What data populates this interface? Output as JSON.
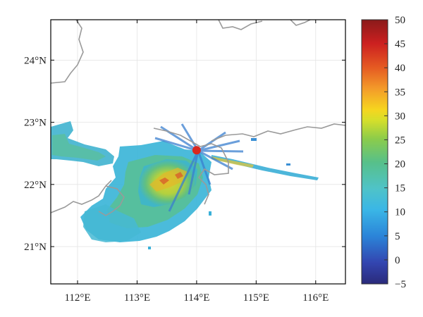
{
  "chart_data": {
    "type": "heatmap",
    "subtype": "radar-reflectivity-map",
    "x_ticks": [
      "112°E",
      "113°E",
      "114°E",
      "115°E",
      "116°E"
    ],
    "x_values": [
      112,
      113,
      114,
      115,
      116
    ],
    "xlim": [
      111.55,
      116.5
    ],
    "y_ticks": [
      "24°N",
      "23°N",
      "22°N",
      "21°N"
    ],
    "y_values": [
      24,
      23,
      22,
      21
    ],
    "ylim": [
      20.4,
      24.65
    ],
    "grid": true,
    "radar_site": {
      "lon": 114.0,
      "lat": 22.55,
      "color": "#d9281f"
    },
    "colorbar": {
      "ticks": [
        "50",
        "45",
        "40",
        "35",
        "30",
        "25",
        "20",
        "15",
        "10",
        "5",
        "0",
        "−5"
      ],
      "values": [
        50,
        45,
        40,
        35,
        30,
        25,
        20,
        15,
        10,
        5,
        0,
        -5
      ],
      "range": [
        -5,
        50
      ],
      "colors": [
        "#2a2a7a",
        "#3345b0",
        "#2b84d8",
        "#3ab6e6",
        "#4fc3c8",
        "#57c08a",
        "#8ccc4a",
        "#d6df2a",
        "#f6d51f",
        "#f39a2a",
        "#e55a22",
        "#cc2020",
        "#8a1a1a"
      ]
    },
    "coastline_color": "#9a9a9a"
  }
}
